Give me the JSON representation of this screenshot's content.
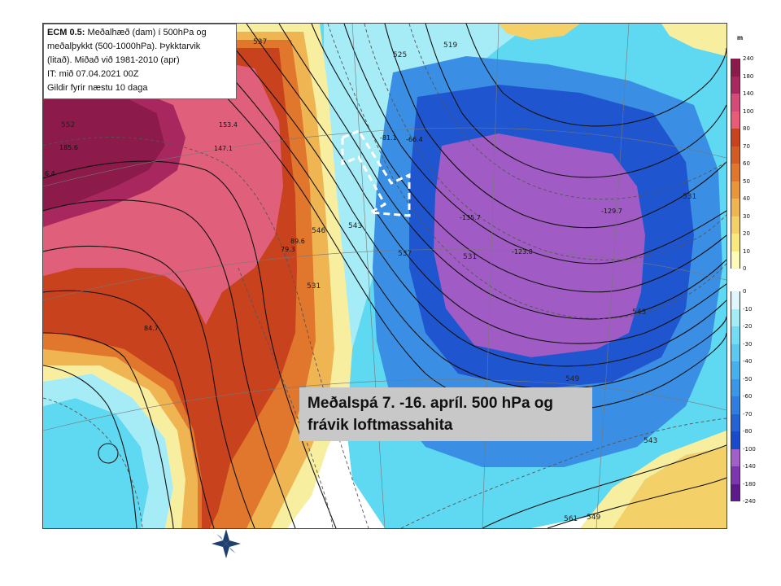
{
  "info": {
    "line1_bold": "ECM 0.5:",
    "line1_rest": " Meðalhæð (dam) í 500hPa og",
    "line2": "meðalþykkt (500-1000hPa). Þykktarvik",
    "line3": "(litað). Miðað við 1981-2010 (apr)",
    "line4": "IT: mið 07.04.2021 00Z",
    "line5": "Gildir fyrir næstu 10 daga"
  },
  "caption": {
    "line1": "Meðalspá 7. -16. apríl.  500 hPa og",
    "line2": "frávik loftmassahita"
  },
  "legend": {
    "unit": "m",
    "warm_ticks": [
      "240",
      "180",
      "140",
      "100",
      "80",
      "70",
      "60",
      "50",
      "40",
      "30",
      "20",
      "10",
      "0"
    ],
    "cold_ticks": [
      "0",
      "-10",
      "-20",
      "-30",
      "-40",
      "-50",
      "-60",
      "-70",
      "-80",
      "-100",
      "-140",
      "-180",
      "-240"
    ],
    "warm_colors": [
      "#8c1a4a",
      "#a8275e",
      "#d64a7a",
      "#e85c78",
      "#c8421e",
      "#d35c24",
      "#e0772c",
      "#e9963a",
      "#efb552",
      "#f3d068",
      "#f8e87e",
      "#fdfbb8"
    ],
    "cold_colors": [
      "#dff6fb",
      "#a6ecf7",
      "#74dcf4",
      "#5dc8f0",
      "#46b1ec",
      "#3a96e6",
      "#2f7de0",
      "#2463d6",
      "#1a4bcc",
      "#a060c8",
      "#7e36b0",
      "#5c1a8c"
    ]
  },
  "contour_labels": [
    "552",
    "537",
    "525",
    "519",
    "543",
    "546",
    "531",
    "537",
    "531",
    "543",
    "549",
    "543",
    "561",
    "549",
    "531"
  ],
  "value_labels": [
    "185.6",
    "6.4",
    "153.4",
    "147.1",
    "89.6",
    "79.3",
    "84.7",
    "-81.1",
    "-66.4",
    "-135.7",
    "-123.8",
    "-129.7"
  ],
  "anomaly_colors": {
    "deep_magenta": "#8c1a4a",
    "pink": "#e0607c",
    "red_orange": "#c8421e",
    "orange": "#e0772c",
    "yellow": "#f3d068",
    "light_yellow": "#f8eea0",
    "cyan": "#5fd8f2",
    "light_cyan": "#a6ecf7",
    "blue": "#3a8fe4",
    "deep_blue": "#1f56d0",
    "purple": "#a05cc4"
  }
}
